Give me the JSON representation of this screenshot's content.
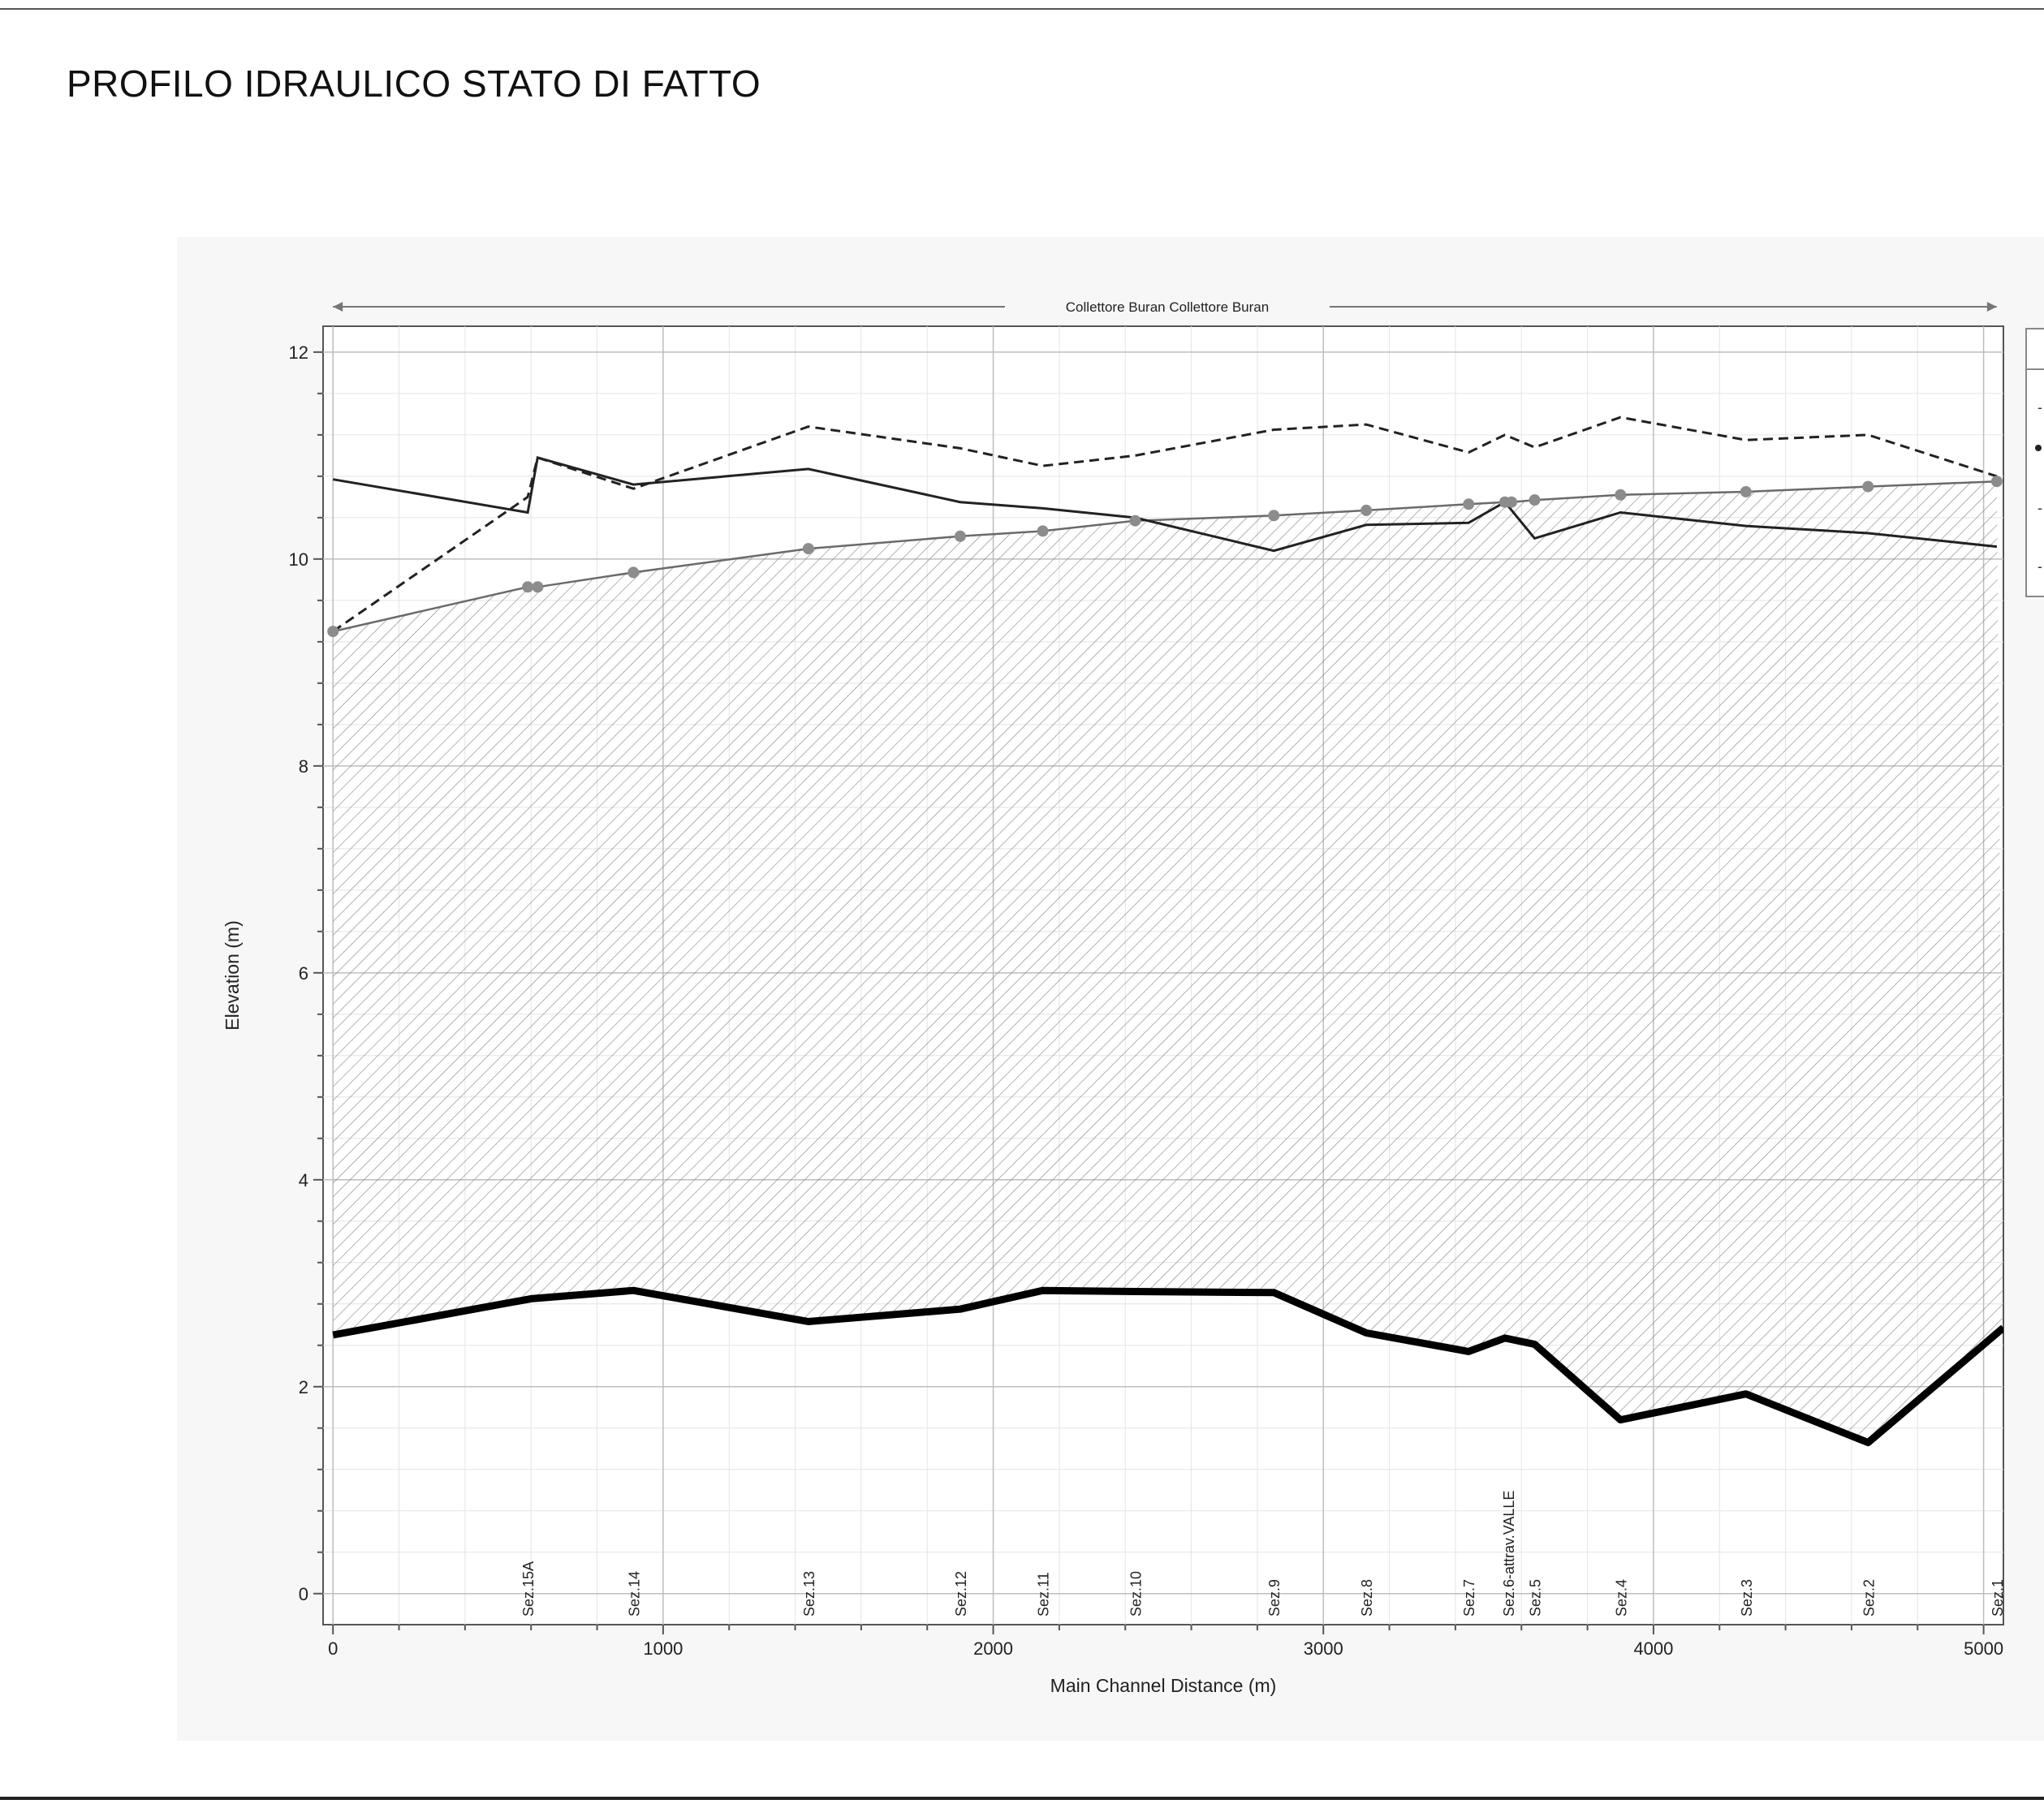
{
  "page": {
    "title": "PROFILO IDRAULICO STATO DI FATTO"
  },
  "chart_data": {
    "type": "line",
    "title": "",
    "reach_label": "Collettore Buran Collettore Buran",
    "xlabel": "Main Channel Distance (m)",
    "ylabel": "Elevation (m)",
    "xlim": [
      -30,
      5060
    ],
    "ylim": [
      -0.3,
      12.25
    ],
    "xticks": [
      0,
      1000,
      2000,
      3000,
      4000,
      5000
    ],
    "yticks": [
      0,
      2,
      4,
      6,
      8,
      10,
      12
    ],
    "grid": true,
    "legend": "right (cropped)",
    "sections": [
      {
        "label": "Sez.15A",
        "x": 590
      },
      {
        "label": "Sez.14",
        "x": 910
      },
      {
        "label": "Sez.13",
        "x": 1440
      },
      {
        "label": "Sez.12",
        "x": 1900
      },
      {
        "label": "Sez.11",
        "x": 2150
      },
      {
        "label": "Sez.10",
        "x": 2430
      },
      {
        "label": "Sez.9",
        "x": 2850
      },
      {
        "label": "Sez.8",
        "x": 3130
      },
      {
        "label": "Sez.7",
        "x": 3440
      },
      {
        "label": "Sez.6-attrav.VALLE",
        "x": 3560
      },
      {
        "label": "Sez.5",
        "x": 3640
      },
      {
        "label": "Sez.4",
        "x": 3900
      },
      {
        "label": "Sez.3",
        "x": 4280
      },
      {
        "label": "Sez.2",
        "x": 4650
      },
      {
        "label": "Sez.1",
        "x": 5040
      }
    ],
    "series": [
      {
        "key": "ground",
        "style": "thick-solid",
        "color": "#000000",
        "x": [
          0,
          600,
          910,
          1440,
          1900,
          2150,
          2430,
          2850,
          3130,
          3440,
          3550,
          3640,
          3900,
          4280,
          4650,
          5060
        ],
        "y": [
          2.5,
          2.85,
          2.93,
          2.63,
          2.75,
          2.93,
          2.92,
          2.91,
          2.52,
          2.34,
          2.47,
          2.41,
          1.68,
          1.93,
          1.46,
          2.57
        ]
      },
      {
        "key": "bank",
        "style": "gray-with-markers",
        "color": "#6a6a6a",
        "x": [
          0,
          590,
          620,
          910,
          1440,
          1900,
          2150,
          2430,
          2850,
          3130,
          3440,
          3550,
          3570,
          3640,
          3900,
          4280,
          4650,
          5040
        ],
        "y": [
          9.3,
          9.73,
          9.73,
          9.87,
          10.1,
          10.22,
          10.27,
          10.37,
          10.42,
          10.47,
          10.53,
          10.55,
          10.55,
          10.57,
          10.62,
          10.65,
          10.7,
          10.75
        ]
      },
      {
        "key": "solid-line",
        "style": "solid",
        "color": "#222222",
        "x": [
          0,
          590,
          620,
          910,
          1440,
          1900,
          2150,
          2430,
          2850,
          3130,
          3440,
          3550,
          3640,
          3900,
          4280,
          4650,
          5040
        ],
        "y": [
          10.77,
          10.45,
          10.98,
          10.72,
          10.87,
          10.55,
          10.49,
          10.4,
          10.08,
          10.33,
          10.35,
          10.55,
          10.2,
          10.45,
          10.32,
          10.25,
          10.12
        ]
      },
      {
        "key": "dashed-line",
        "style": "dashed",
        "color": "#222222",
        "x": [
          0,
          590,
          620,
          910,
          1440,
          1900,
          2150,
          2430,
          2850,
          3130,
          3440,
          3550,
          3640,
          3900,
          4280,
          4650,
          5040
        ],
        "y": [
          9.3,
          10.6,
          10.98,
          10.68,
          11.28,
          11.07,
          10.9,
          11.0,
          11.25,
          11.3,
          11.03,
          11.2,
          11.08,
          11.37,
          11.15,
          11.2,
          10.8
        ]
      }
    ]
  }
}
